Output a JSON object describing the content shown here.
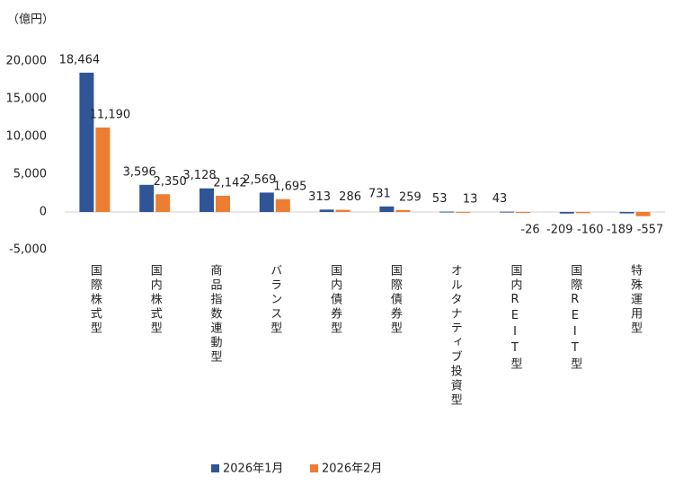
{
  "chart_data": {
    "type": "bar",
    "y_unit_label": "（億円）",
    "categories": [
      "国際株式型",
      "国内株式型",
      "商品指数連動型",
      "バランス型",
      "国内債券型",
      "国際債券型",
      "オルタナティブ投資型",
      "国内REIT型",
      "国際REIT型",
      "特殊運用型"
    ],
    "series": [
      {
        "name": "2026年1月",
        "color": "#2f5597",
        "values": [
          18464,
          3596,
          3128,
          2569,
          313,
          731,
          53,
          43,
          -209,
          -189
        ],
        "value_labels": [
          "18,464",
          "3,596",
          "3,128",
          "2,569",
          "313",
          "731",
          "53",
          "43",
          "-209",
          "-189"
        ]
      },
      {
        "name": "2026年2月",
        "color": "#ed7d31",
        "values": [
          11190,
          2350,
          2142,
          1695,
          286,
          259,
          13,
          -26,
          -160,
          -557
        ],
        "value_labels": [
          "11,190",
          "2,350",
          "2,142",
          "1,695",
          "286",
          "259",
          "13",
          "-26",
          "-160",
          "-557"
        ]
      }
    ],
    "negative_label_color": "#ff0000",
    "ylim": [
      -5000,
      20000
    ],
    "yticks": [
      {
        "value": -5000,
        "label": "-5,000"
      },
      0,
      {
        "value": 5000,
        "label": "5,000"
      },
      {
        "value": 10000,
        "label": "10,000"
      },
      {
        "value": 15000,
        "label": "15,000"
      },
      {
        "value": 20000,
        "label": "20,000"
      }
    ],
    "legend": "bottom"
  }
}
